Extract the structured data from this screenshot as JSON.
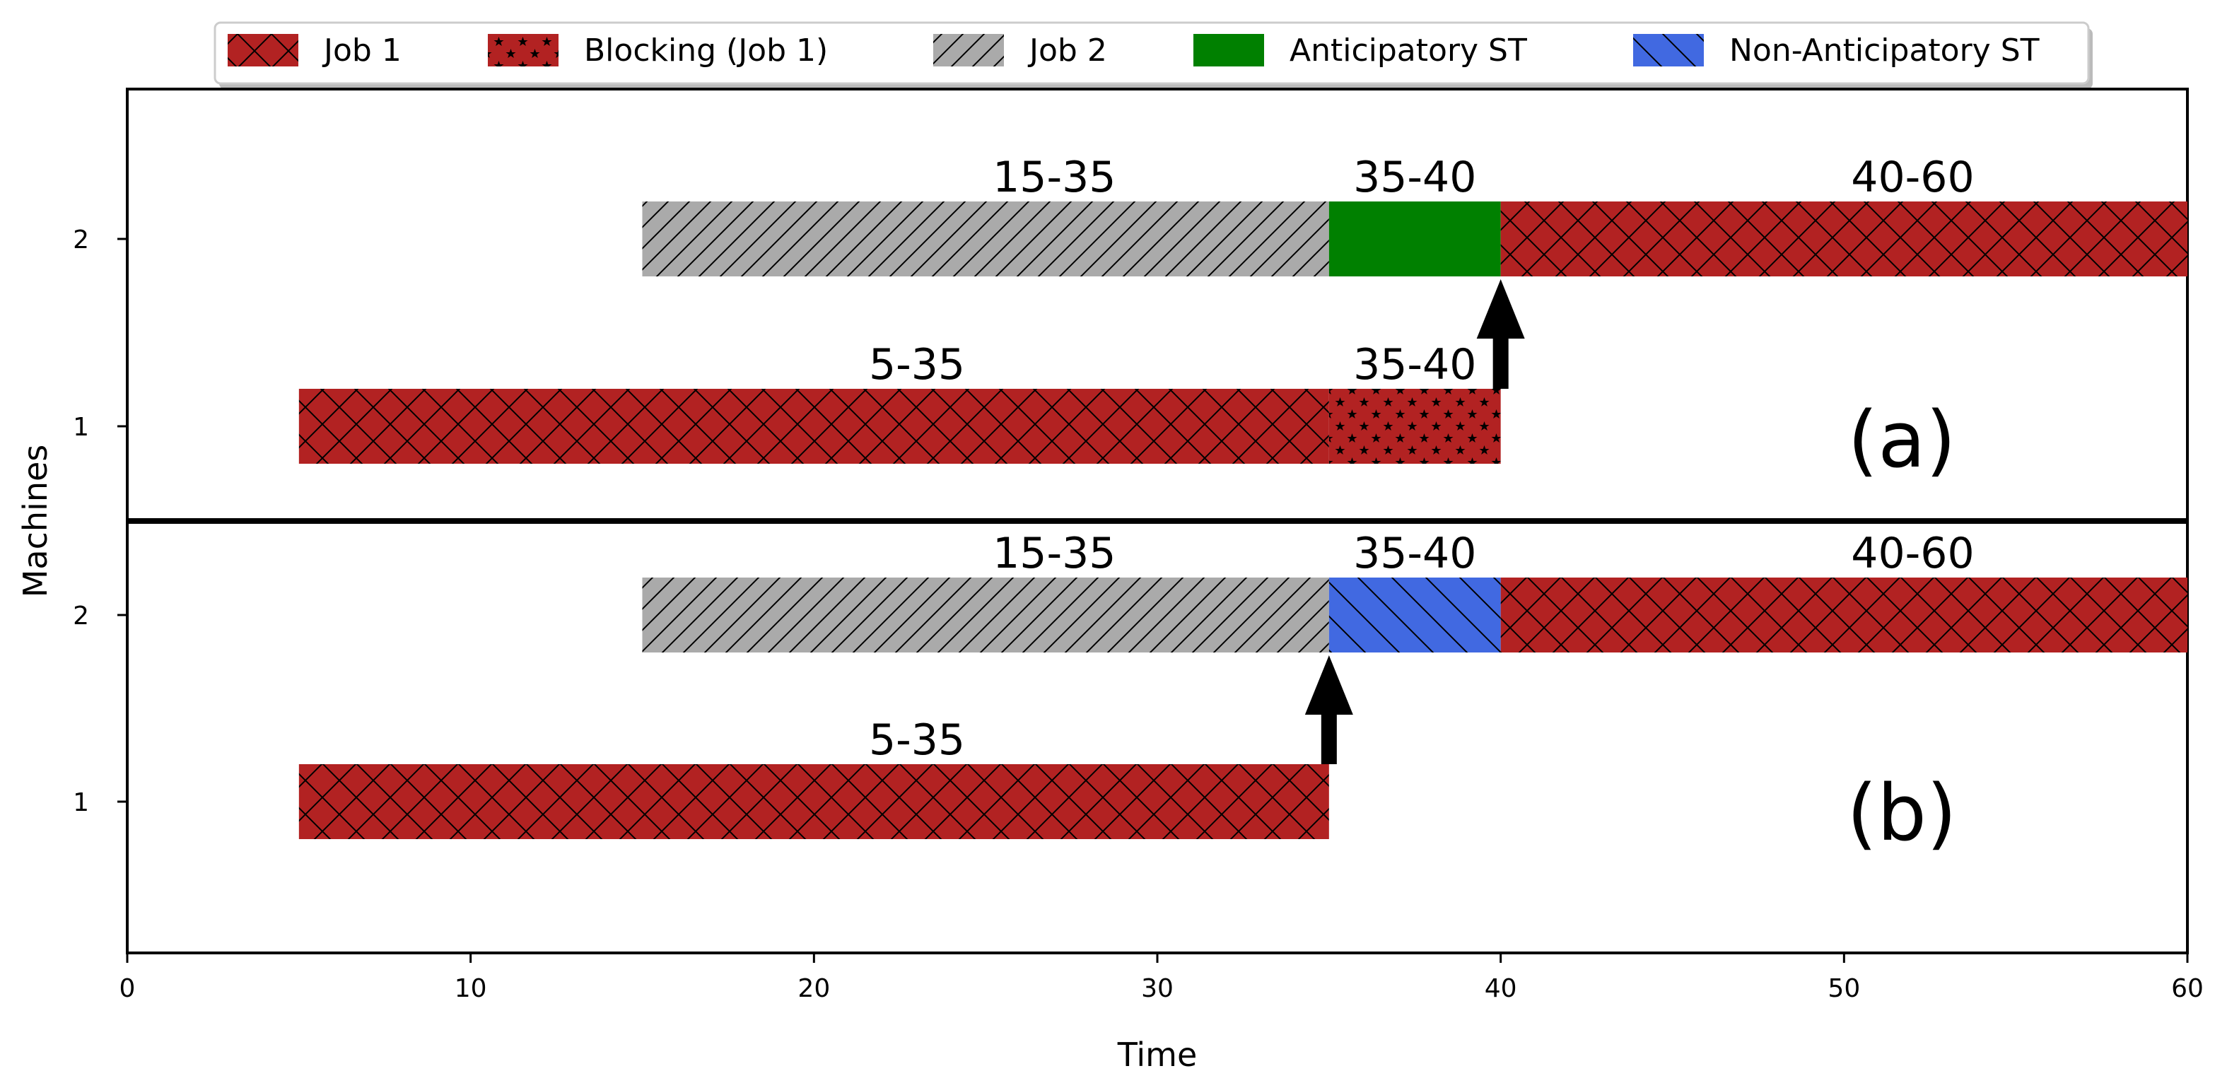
{
  "chart_data": {
    "type": "gantt",
    "xlabel": "Time",
    "ylabel": "Machines",
    "xlim": [
      0,
      60
    ],
    "xticks": [
      0,
      10,
      20,
      30,
      40,
      50,
      60
    ],
    "yticks": [
      1,
      2
    ],
    "legend": {
      "position": "top-center",
      "entries": [
        {
          "label": "Job 1",
          "style": "job1"
        },
        {
          "label": "Blocking (Job 1)",
          "style": "blocking"
        },
        {
          "label": "Job 2",
          "style": "job2"
        },
        {
          "label": "Anticipatory ST",
          "style": "anticip"
        },
        {
          "label": "Non-Anticipatory ST",
          "style": "nonanticip"
        }
      ]
    },
    "panels": [
      {
        "name": "a",
        "label": "(a)",
        "bars": [
          {
            "machine": 2,
            "start": 15,
            "end": 35,
            "style": "job2",
            "label": "15-35"
          },
          {
            "machine": 2,
            "start": 35,
            "end": 40,
            "style": "anticip",
            "label": "35-40"
          },
          {
            "machine": 2,
            "start": 40,
            "end": 60,
            "style": "job1",
            "label": "40-60"
          },
          {
            "machine": 1,
            "start": 5,
            "end": 35,
            "style": "job1",
            "label": "5-35"
          },
          {
            "machine": 1,
            "start": 35,
            "end": 40,
            "style": "blocking",
            "label": "35-40"
          }
        ],
        "arrow": {
          "x": 40,
          "from_machine": 1,
          "to_machine": 2
        }
      },
      {
        "name": "b",
        "label": "(b)",
        "bars": [
          {
            "machine": 2,
            "start": 15,
            "end": 35,
            "style": "job2",
            "label": "15-35"
          },
          {
            "machine": 2,
            "start": 35,
            "end": 40,
            "style": "nonanticip",
            "label": "35-40"
          },
          {
            "machine": 2,
            "start": 40,
            "end": 60,
            "style": "job1",
            "label": "40-60"
          },
          {
            "machine": 1,
            "start": 5,
            "end": 35,
            "style": "job1",
            "label": "5-35"
          }
        ],
        "arrow": {
          "x": 35,
          "from_machine": 1,
          "to_machine": 2
        }
      }
    ]
  },
  "colors": {
    "job1": "#b22222",
    "job2": "#aaaaaa",
    "anticip": "#008000",
    "nonanticip": "#4169e1",
    "axis": "#000000"
  }
}
